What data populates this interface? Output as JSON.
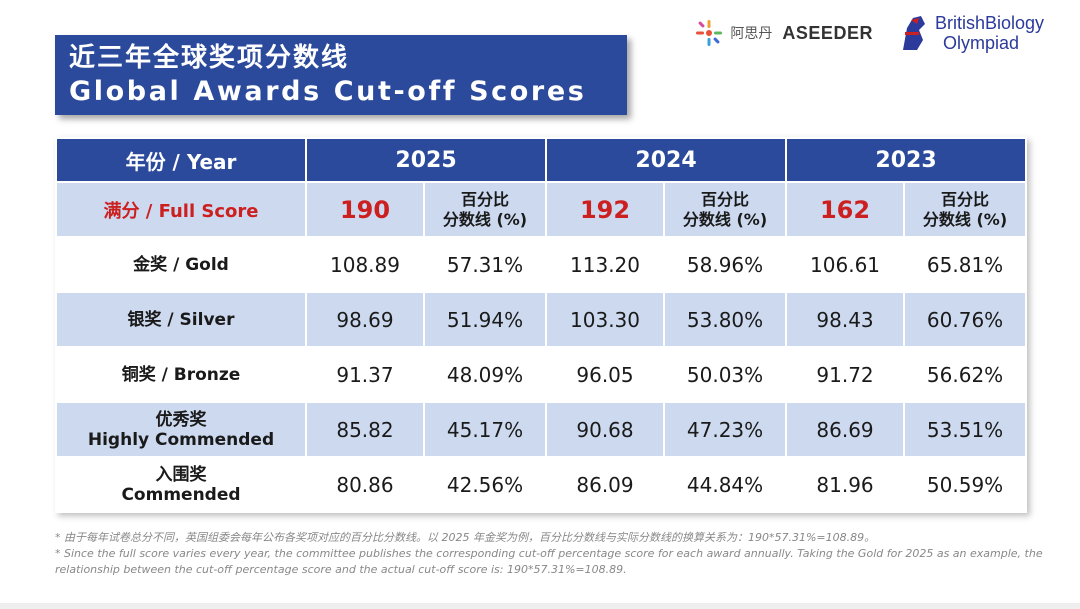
{
  "title": {
    "cn": "近三年全球奖项分数线",
    "en": "Global Awards Cut-off Scores"
  },
  "logos": {
    "asider_cn": "阿思丹",
    "aseeder": "ASEEDER",
    "bbo_line1": "BritishBiology",
    "bbo_line2": "Olympiad"
  },
  "table": {
    "header_label": "年份 / Year",
    "years": [
      "2025",
      "2024",
      "2023"
    ],
    "full_score": {
      "label": "满分 / Full Score",
      "scores": [
        "190",
        "192",
        "162"
      ],
      "pct_label_line1": "百分比",
      "pct_label_line2": "分数线 (%)"
    },
    "rows": [
      {
        "label_line1": "金奖 / Gold",
        "label_line2": "",
        "values": [
          "108.89",
          "57.31%",
          "113.20",
          "58.96%",
          "106.61",
          "65.81%"
        ]
      },
      {
        "label_line1": "银奖 / Silver",
        "label_line2": "",
        "values": [
          "98.69",
          "51.94%",
          "103.30",
          "53.80%",
          "98.43",
          "60.76%"
        ]
      },
      {
        "label_line1": "铜奖 / Bronze",
        "label_line2": "",
        "values": [
          "91.37",
          "48.09%",
          "96.05",
          "50.03%",
          "91.72",
          "56.62%"
        ]
      },
      {
        "label_line1": "优秀奖",
        "label_line2": "Highly Commended",
        "values": [
          "85.82",
          "45.17%",
          "90.68",
          "47.23%",
          "86.69",
          "53.51%"
        ]
      },
      {
        "label_line1": "入围奖",
        "label_line2": "Commended",
        "values": [
          "80.86",
          "42.56%",
          "86.09",
          "44.84%",
          "81.96",
          "50.59%"
        ]
      }
    ]
  },
  "footnote": {
    "cn": "* 由于每年试卷总分不同，英国组委会每年公布各奖项对应的百分比分数线。以 2025 年金奖为例，百分比分数线与实际分数线的换算关系为：190*57.31%=108.89。",
    "en": "* Since the full score varies every year, the committee publishes the corresponding cut-off percentage score for each award annually. Taking the Gold for 2025 as an example, the relationship between the cut-off percentage score and the actual cut-off score is: 190*57.31%=108.89."
  },
  "colors": {
    "header_blue": "#2b4a9b",
    "row_tint": "#ccd9ef",
    "full_score_red": "#cc1f1f"
  }
}
